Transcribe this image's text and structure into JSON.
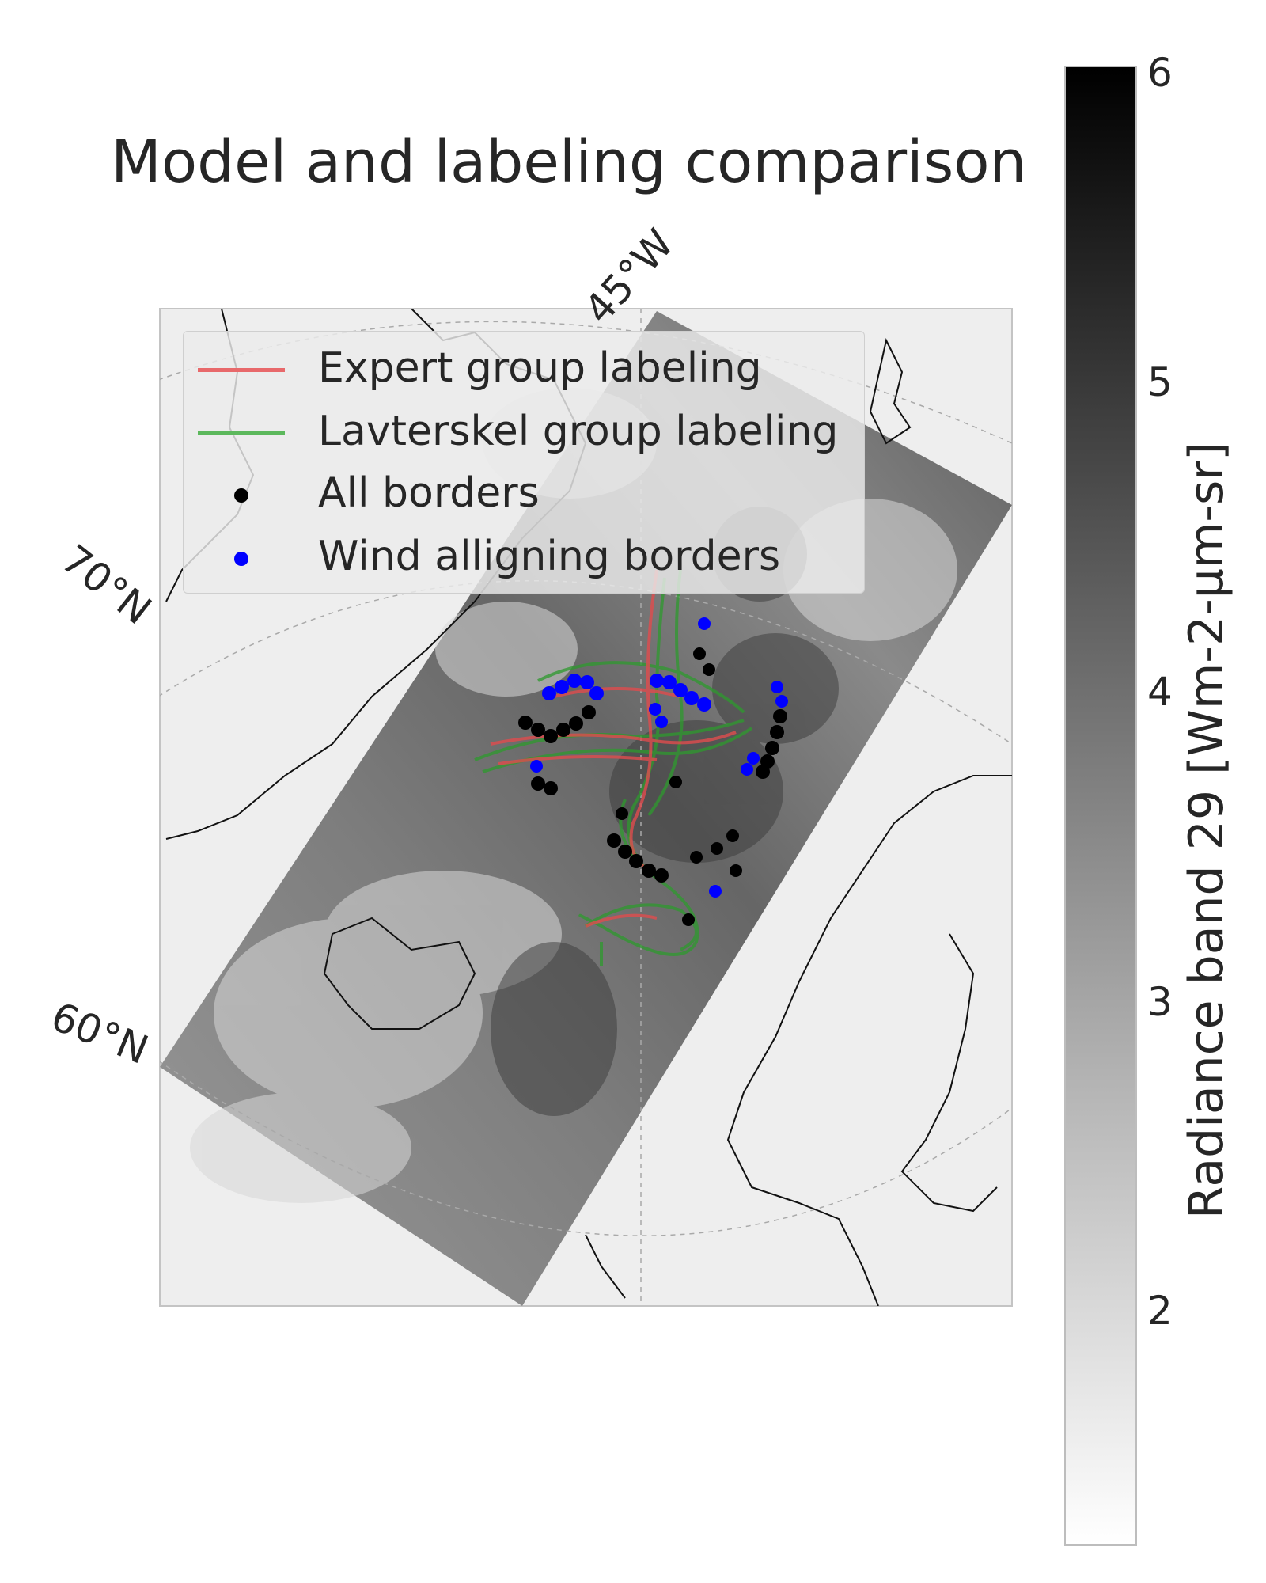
{
  "title": "Model and labeling comparison",
  "gridline_labels": {
    "lon_45w": "45°W",
    "lat_70n": "70°N",
    "lat_60n": "60°N"
  },
  "legend": {
    "items": [
      {
        "label": "Expert group labeling",
        "kind": "line",
        "color": "#e8696b"
      },
      {
        "label": "Lavterskel group labeling",
        "kind": "line",
        "color": "#5cb85c"
      },
      {
        "label": "All borders",
        "kind": "dot",
        "color": "#000000"
      },
      {
        "label": "Wind alligning borders",
        "kind": "dot",
        "color": "#0000ff"
      }
    ]
  },
  "colorbar": {
    "label": "Radiance band 29 [Wm-2-μm-sr]",
    "ticks": [
      "6",
      "5",
      "4",
      "3",
      "2"
    ],
    "range": [
      1.5,
      6
    ]
  },
  "colors": {
    "expert": "#e8696b",
    "lavterskel": "#3a9a3a",
    "all_borders": "#000000",
    "wind_borders": "#0000ff"
  }
}
